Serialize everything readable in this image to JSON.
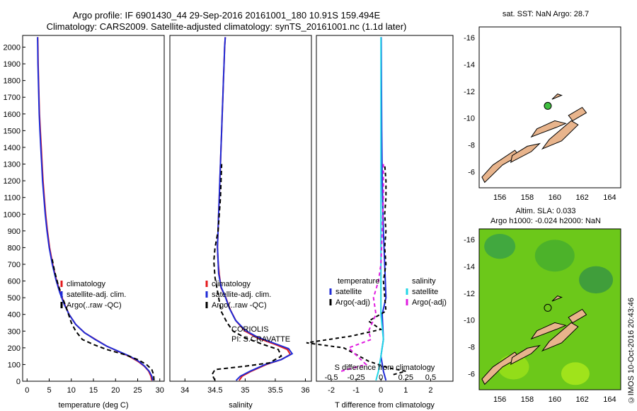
{
  "header": {
    "title1": "Argo profile: IF 6901430_44 29-Sep-2016 20161001_180 10.91S 159.494E",
    "title2": "Climatology: CARS2009. Satellite-adjusted climatology: synTS_20161001.nc (1.1d later)"
  },
  "side": {
    "sst": "sat. SST: NaN Argo: 28.7",
    "sla1": "Altim. SLA: 0.033",
    "sla2": "Argo h1000: -0.024 h2000: NaN",
    "credit": "©IMOS 10-Oct-2016 20:43:46"
  },
  "colors": {
    "clim": "#e41a1c",
    "sat": "#1f2bd6",
    "argo": "#000000",
    "sal_sat": "#22d6e6",
    "sal_argo": "#e01ce0",
    "land": "#e8b48c",
    "sea": "#6cc81a",
    "marker": "#3fbf3f"
  },
  "chart_data": [
    {
      "id": "temp",
      "type": "line",
      "xlabel": "temperature (deg C)",
      "ylabel": "",
      "xlim": [
        -1,
        31
      ],
      "ylim": [
        2070,
        0
      ],
      "xticks": [
        0,
        5,
        10,
        15,
        20,
        25,
        30
      ],
      "yticks": [
        0,
        100,
        200,
        300,
        400,
        500,
        600,
        700,
        800,
        900,
        1000,
        1100,
        1200,
        1300,
        1400,
        1500,
        1600,
        1700,
        1800,
        1900,
        2000
      ],
      "legend": [
        "climatology",
        "satellite-adj. clim.",
        "Argo(..raw -QC)"
      ],
      "series": [
        {
          "name": "climatology",
          "color": "clim",
          "dash": "",
          "points": [
            [
              28.2,
              5
            ],
            [
              28.0,
              30
            ],
            [
              27.5,
              60
            ],
            [
              26.5,
              90
            ],
            [
              25,
              120
            ],
            [
              23,
              150
            ],
            [
              20.5,
              180
            ],
            [
              18,
              210
            ],
            [
              15.5,
              250
            ],
            [
              13,
              290
            ],
            [
              11,
              340
            ],
            [
              9.5,
              400
            ],
            [
              8.5,
              460
            ],
            [
              7.5,
              530
            ],
            [
              6.6,
              610
            ],
            [
              5.8,
              700
            ],
            [
              5.1,
              800
            ],
            [
              4.6,
              900
            ],
            [
              4.2,
              1000
            ],
            [
              3.9,
              1100
            ],
            [
              3.6,
              1200
            ],
            [
              3.4,
              1300
            ],
            [
              3.2,
              1400
            ],
            [
              3.0,
              1500
            ],
            [
              2.8,
              1600
            ],
            [
              2.7,
              1700
            ],
            [
              2.6,
              1800
            ],
            [
              2.5,
              1900
            ],
            [
              2.45,
              2000
            ],
            [
              2.4,
              2060
            ]
          ]
        },
        {
          "name": "satellite-adj. clim.",
          "color": "sat",
          "dash": "",
          "points": [
            [
              28.4,
              5
            ],
            [
              28.2,
              30
            ],
            [
              27.6,
              60
            ],
            [
              26.6,
              90
            ],
            [
              25.2,
              120
            ],
            [
              23.2,
              150
            ],
            [
              20.6,
              180
            ],
            [
              18,
              210
            ],
            [
              15.4,
              250
            ],
            [
              13,
              290
            ],
            [
              11,
              340
            ],
            [
              9.5,
              400
            ],
            [
              8.4,
              460
            ],
            [
              7.4,
              530
            ],
            [
              6.5,
              610
            ],
            [
              5.7,
              700
            ],
            [
              5.0,
              800
            ],
            [
              4.5,
              900
            ],
            [
              4.1,
              1000
            ],
            [
              3.8,
              1100
            ],
            [
              3.5,
              1200
            ],
            [
              3.3,
              1300
            ],
            [
              3.1,
              1400
            ],
            [
              2.9,
              1500
            ],
            [
              2.75,
              1600
            ],
            [
              2.65,
              1700
            ],
            [
              2.55,
              1800
            ],
            [
              2.45,
              1900
            ],
            [
              2.4,
              2000
            ],
            [
              2.38,
              2060
            ]
          ]
        },
        {
          "name": "Argo(..raw -QC)",
          "color": "argo",
          "dash": "6,4",
          "points": [
            [
              28.7,
              5
            ],
            [
              28.6,
              40
            ],
            [
              28.2,
              70
            ],
            [
              27,
              100
            ],
            [
              25,
              130
            ],
            [
              22,
              160
            ],
            [
              18,
              190
            ],
            [
              15,
              220
            ],
            [
              12.5,
              250
            ],
            [
              11,
              300
            ],
            [
              10,
              350
            ],
            [
              9,
              430
            ],
            [
              8,
              500
            ],
            [
              7,
              580
            ],
            [
              6.2,
              660
            ],
            [
              5.6,
              740
            ]
          ]
        }
      ]
    },
    {
      "id": "sal",
      "type": "line",
      "xlabel": "salinity",
      "ylabel": "",
      "xlim": [
        33.75,
        36.1
      ],
      "ylim": [
        2070,
        0
      ],
      "xticks": [
        34,
        34.5,
        35,
        35.5,
        36
      ],
      "legend": [
        "climatology",
        "satellite-adj. clim.",
        "Argo(..raw -QC)"
      ],
      "annot": [
        "CORIOLIS",
        "PI: S.CRAVATTE"
      ],
      "series": [
        {
          "name": "climatology",
          "color": "clim",
          "dash": "",
          "points": [
            [
              34.9,
              5
            ],
            [
              34.95,
              30
            ],
            [
              35.1,
              60
            ],
            [
              35.35,
              100
            ],
            [
              35.6,
              130
            ],
            [
              35.75,
              160
            ],
            [
              35.7,
              190
            ],
            [
              35.5,
              220
            ],
            [
              35.2,
              260
            ],
            [
              35.0,
              300
            ],
            [
              34.85,
              360
            ],
            [
              34.75,
              430
            ],
            [
              34.68,
              500
            ],
            [
              34.6,
              560
            ],
            [
              34.57,
              640
            ],
            [
              34.55,
              720
            ],
            [
              34.54,
              800
            ],
            [
              34.55,
              900
            ],
            [
              34.56,
              1000
            ],
            [
              34.57,
              1100
            ],
            [
              34.58,
              1200
            ],
            [
              34.59,
              1300
            ],
            [
              34.6,
              1400
            ],
            [
              34.61,
              1500
            ],
            [
              34.62,
              1600
            ],
            [
              34.63,
              1700
            ],
            [
              34.64,
              1800
            ],
            [
              34.65,
              1900
            ],
            [
              34.66,
              2000
            ],
            [
              34.67,
              2060
            ]
          ]
        },
        {
          "name": "satellite-adj. clim.",
          "color": "sat",
          "dash": "",
          "points": [
            [
              34.85,
              5
            ],
            [
              34.92,
              30
            ],
            [
              35.08,
              60
            ],
            [
              35.33,
              100
            ],
            [
              35.6,
              130
            ],
            [
              35.78,
              165
            ],
            [
              35.72,
              195
            ],
            [
              35.5,
              225
            ],
            [
              35.2,
              265
            ],
            [
              35.0,
              305
            ],
            [
              34.84,
              365
            ],
            [
              34.74,
              435
            ],
            [
              34.67,
              505
            ],
            [
              34.6,
              565
            ],
            [
              34.56,
              645
            ],
            [
              34.55,
              725
            ],
            [
              34.54,
              805
            ],
            [
              34.55,
              905
            ],
            [
              34.56,
              1005
            ],
            [
              34.57,
              1105
            ],
            [
              34.58,
              1205
            ],
            [
              34.59,
              1305
            ],
            [
              34.6,
              1405
            ],
            [
              34.61,
              1505
            ],
            [
              34.62,
              1605
            ],
            [
              34.63,
              1705
            ],
            [
              34.64,
              1805
            ],
            [
              34.65,
              1905
            ],
            [
              34.66,
              2005
            ],
            [
              34.67,
              2060
            ]
          ]
        },
        {
          "name": "Argo(..raw -QC)",
          "color": "argo",
          "dash": "6,4",
          "points": [
            [
              34.5,
              5
            ],
            [
              34.45,
              40
            ],
            [
              34.5,
              70
            ],
            [
              35.0,
              90
            ],
            [
              35.4,
              110
            ],
            [
              35.6,
              150
            ],
            [
              35.55,
              190
            ],
            [
              35.3,
              220
            ],
            [
              35.0,
              260
            ],
            [
              34.8,
              300
            ],
            [
              34.7,
              350
            ],
            [
              34.6,
              420
            ],
            [
              34.55,
              520
            ],
            [
              34.5,
              620
            ],
            [
              34.48,
              720
            ],
            [
              34.5,
              800
            ],
            [
              34.55,
              900
            ],
            [
              34.57,
              1000
            ],
            [
              34.59,
              1100
            ],
            [
              34.6,
              1200
            ],
            [
              34.61,
              1300
            ]
          ]
        }
      ]
    },
    {
      "id": "diff",
      "type": "line",
      "xlabel": "T difference from climatology",
      "xlabel_top": "S difference from climatology",
      "xlim": [
        -2.6,
        2.9
      ],
      "ylim": [
        2070,
        0
      ],
      "xticks": [
        -2,
        -1,
        0,
        1,
        2
      ],
      "xticklabels_top": [
        "-0.5",
        "-0.25",
        "0",
        "0.25",
        "0.5"
      ],
      "legend_titles": [
        "temperature",
        "salinity"
      ],
      "legend_left": [
        "satellite",
        "Argo(-adj)"
      ],
      "legend_right": [
        "satellite",
        "Argo(-adj)"
      ],
      "series": [
        {
          "name": "T satellite",
          "color": "sat",
          "dash": "",
          "points": [
            [
              0.2,
              5
            ],
            [
              0.1,
              60
            ],
            [
              0.0,
              150
            ],
            [
              0.1,
              250
            ],
            [
              0.05,
              400
            ],
            [
              0.2,
              500
            ],
            [
              0.15,
              700
            ],
            [
              0.1,
              900
            ],
            [
              0.05,
              1200
            ],
            [
              0.03,
              1500
            ],
            [
              0.02,
              1800
            ],
            [
              0.01,
              2060
            ]
          ]
        },
        {
          "name": "T Argo(-adj)",
          "color": "argo",
          "dash": "5,4",
          "points": [
            [
              0.5,
              40
            ],
            [
              1.0,
              60
            ],
            [
              0.3,
              80
            ],
            [
              -0.5,
              120
            ],
            [
              -1.5,
              200
            ],
            [
              -3.0,
              230
            ],
            [
              -1.2,
              270
            ],
            [
              0.0,
              310
            ],
            [
              -0.5,
              360
            ],
            [
              0.2,
              420
            ],
            [
              0.1,
              600
            ],
            [
              0.2,
              700
            ],
            [
              0.15,
              800
            ],
            [
              0.2,
              900
            ],
            [
              0.15,
              1000
            ],
            [
              0.2,
              1100
            ],
            [
              0.2,
              1200
            ],
            [
              0.15,
              1300
            ]
          ]
        },
        {
          "name": "S satellite",
          "color": "sal_sat",
          "dash": "",
          "points": [
            [
              -0.2,
              5
            ],
            [
              -0.1,
              60
            ],
            [
              0.0,
              150
            ],
            [
              0.1,
              250
            ],
            [
              0.0,
              400
            ],
            [
              0.0,
              700
            ],
            [
              0.0,
              1000
            ],
            [
              0.0,
              1500
            ],
            [
              0.0,
              2060
            ]
          ]
        },
        {
          "name": "S Argo(-adj)",
          "color": "sal_argo",
          "dash": "5,4",
          "points": [
            [
              -1.6,
              60
            ],
            [
              -0.6,
              100
            ],
            [
              -1.3,
              200
            ],
            [
              -0.4,
              250
            ],
            [
              -0.5,
              300
            ],
            [
              -0.2,
              400
            ],
            [
              -0.3,
              500
            ],
            [
              -0.1,
              600
            ],
            [
              0.0,
              700
            ],
            [
              0.05,
              900
            ],
            [
              0.1,
              1100
            ],
            [
              0.1,
              1300
            ]
          ]
        }
      ]
    },
    {
      "id": "map1",
      "type": "scatter",
      "kind": "map",
      "xlim": [
        154.5,
        164.8
      ],
      "ylim": [
        -16.8,
        -4.8
      ],
      "xticks": [
        156,
        158,
        160,
        162,
        164
      ],
      "yticks": [
        -6,
        -8,
        -10,
        -12,
        -14,
        -16
      ],
      "marker": [
        159.494,
        -10.91
      ],
      "background": "#ffffff"
    },
    {
      "id": "map2",
      "type": "heatmap",
      "kind": "map",
      "xlim": [
        154.5,
        164.8
      ],
      "ylim": [
        -16.8,
        -4.8
      ],
      "xticks": [
        156,
        158,
        160,
        162,
        164
      ],
      "yticks": [
        -6,
        -8,
        -10,
        -12,
        -14,
        -16
      ],
      "marker": [
        159.494,
        -10.91
      ],
      "background": "sea"
    }
  ]
}
